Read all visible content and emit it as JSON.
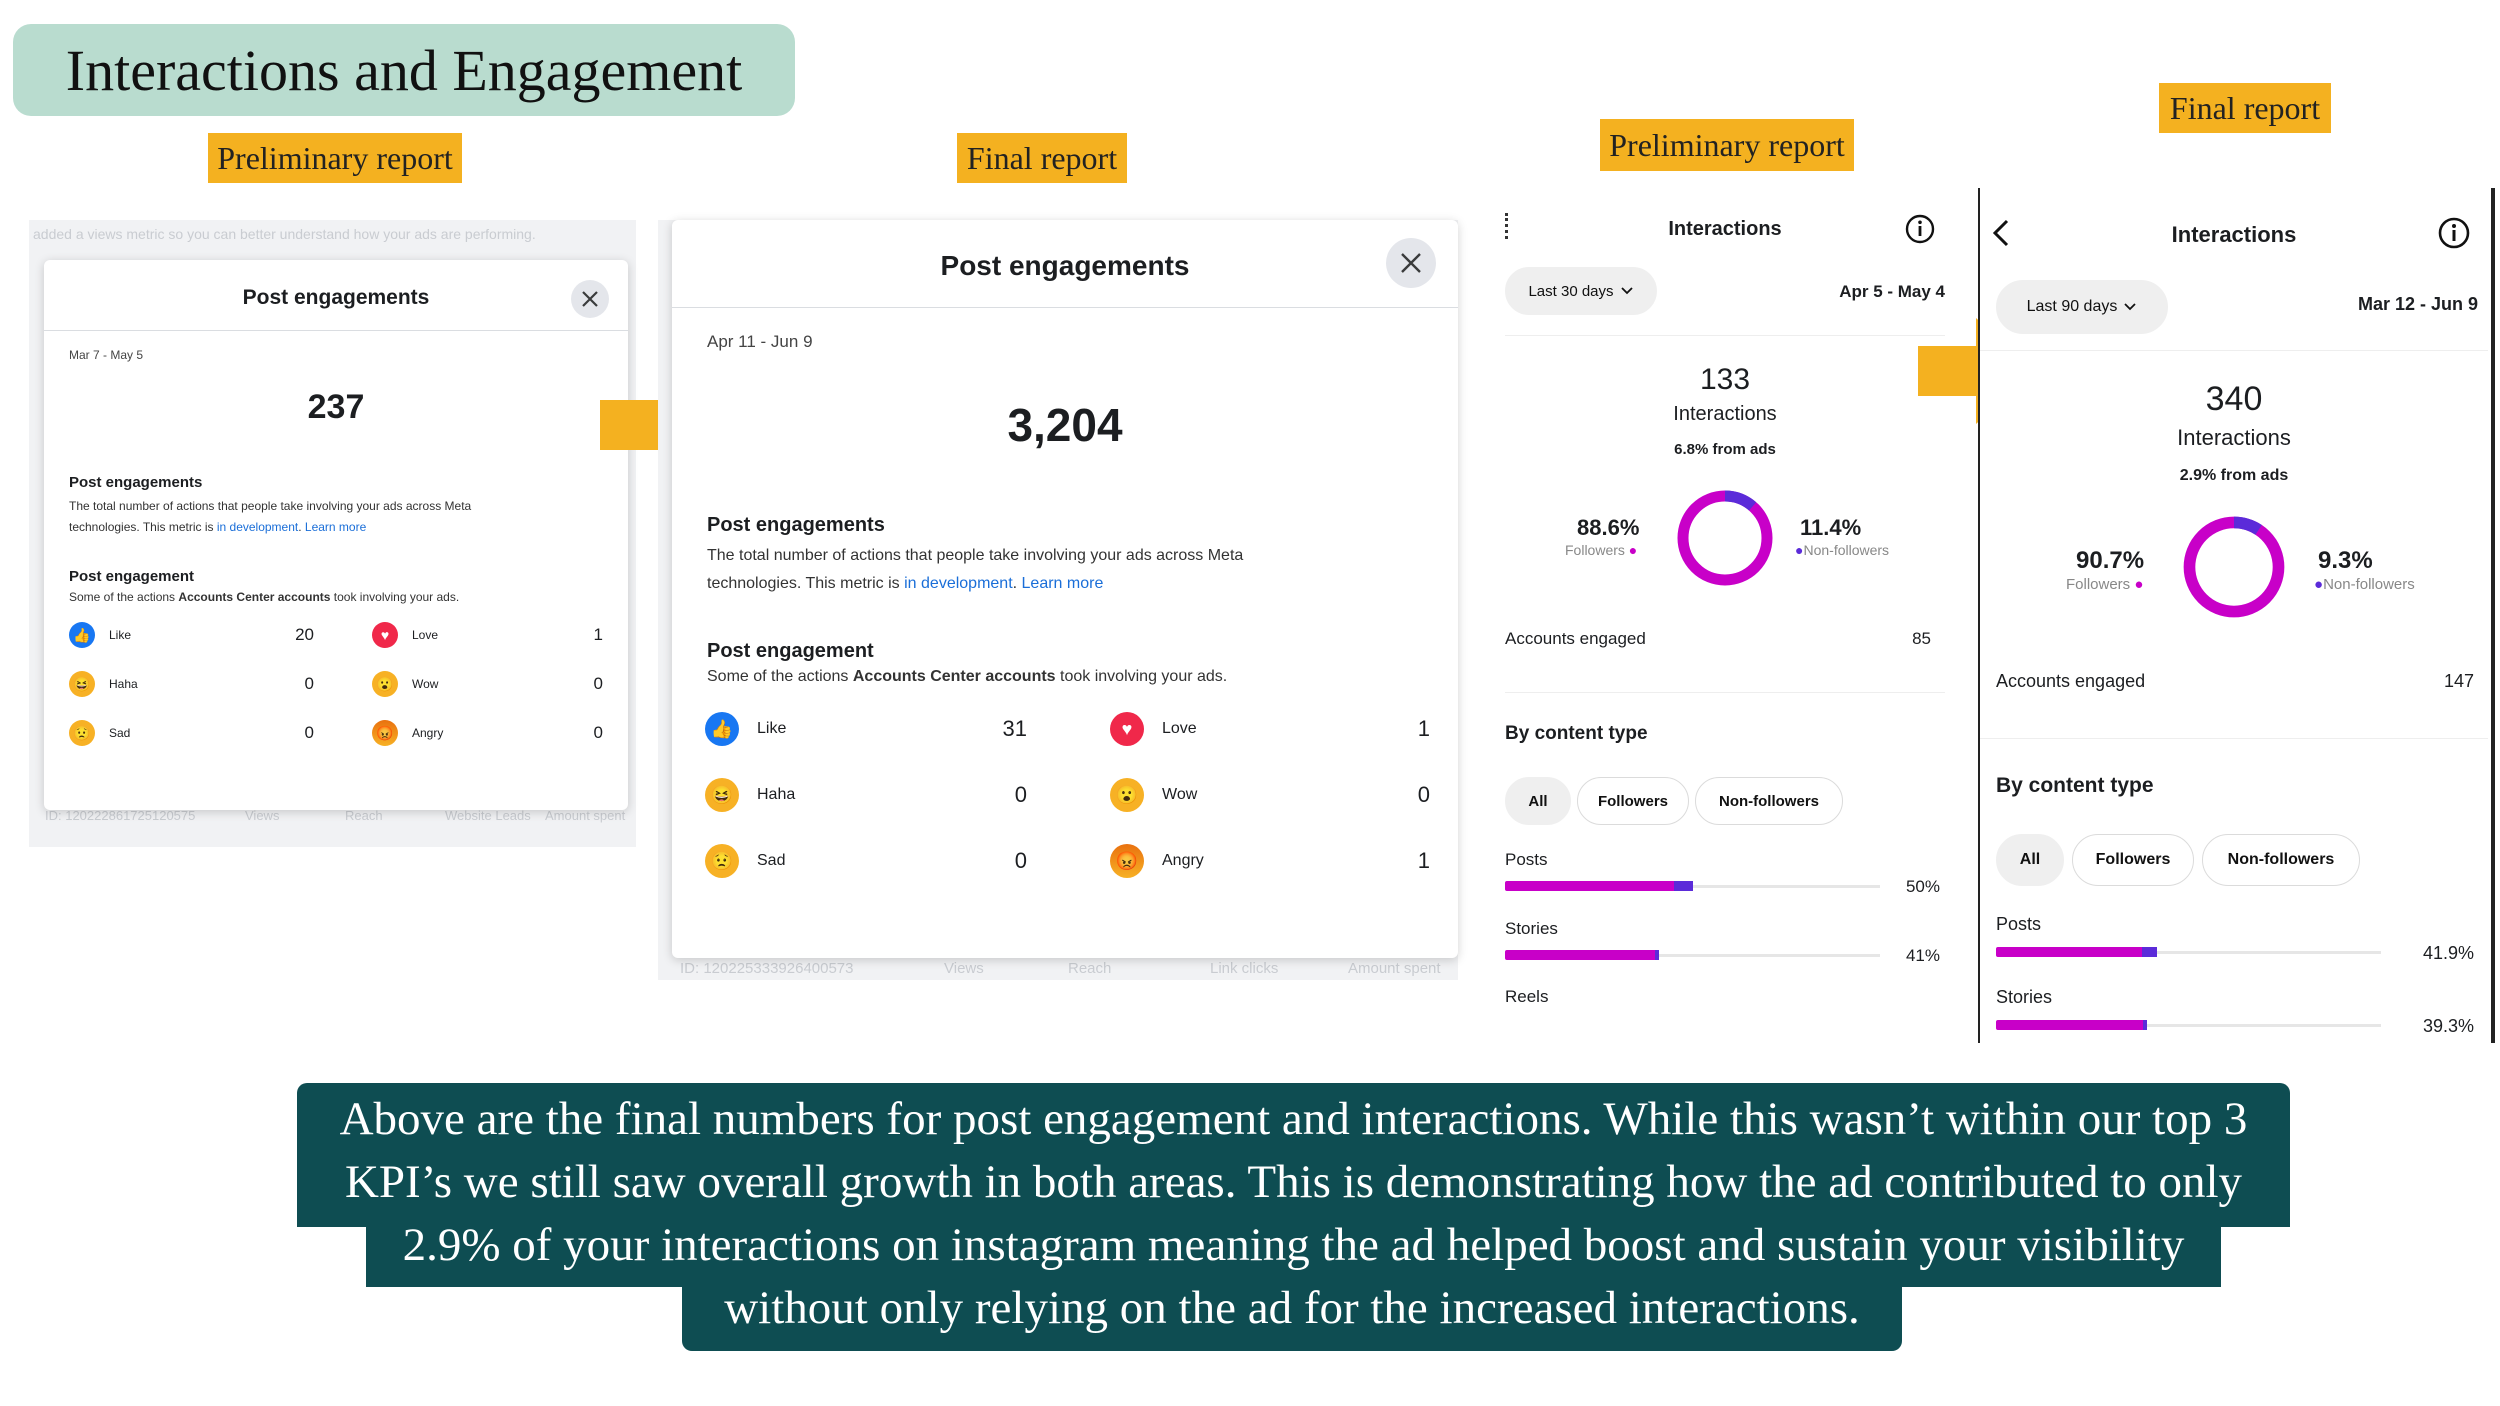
{
  "title": "Interactions and Engagement",
  "tags": {
    "prelim_left": "Preliminary report",
    "final_left": "Final report",
    "prelim_right": "Preliminary report",
    "final_right": "Final report"
  },
  "prelim_post": {
    "bg_notice": "added a views metric so you can better understand how your ads are performing.",
    "bg_id": "ID: 120222861725120575",
    "bg_cols": [
      "Views",
      "Reach",
      "Website Leads",
      "Amount spent"
    ],
    "heading": "Post engagements",
    "date_range": "Mar 7 - May 5",
    "total": "237",
    "section1_title": "Post engagements",
    "section1_text": "The total number of actions that people take involving your ads across Meta",
    "section1_text2": "technologies. This metric is ",
    "dev_link": "in development",
    "learn_more": "Learn more",
    "section2_title": "Post engagement",
    "section2_text_a": "Some of the actions ",
    "section2_bold": "Accounts Center accounts",
    "section2_text_b": " took involving your ads.",
    "reactions": [
      {
        "name": "Like",
        "value": "20"
      },
      {
        "name": "Love",
        "value": "1"
      },
      {
        "name": "Haha",
        "value": "0"
      },
      {
        "name": "Wow",
        "value": "0"
      },
      {
        "name": "Sad",
        "value": "0"
      },
      {
        "name": "Angry",
        "value": "0"
      }
    ]
  },
  "final_post": {
    "bg_id": "ID: 120225333926400573",
    "bg_cols": [
      "Views",
      "Reach",
      "Link clicks",
      "Amount spent"
    ],
    "heading": "Post engagements",
    "date_range": "Apr 11 - Jun 9",
    "total": "3,204",
    "section1_title": "Post engagements",
    "section1_text": "The total number of actions that people take involving your ads across Meta",
    "section1_text2": "technologies. This metric is ",
    "dev_link": "in development",
    "learn_more": "Learn more",
    "section2_title": "Post engagement",
    "section2_text_a": "Some of the actions ",
    "section2_bold": "Accounts Center accounts",
    "section2_text_b": " took involving your ads.",
    "reactions": [
      {
        "name": "Like",
        "value": "31"
      },
      {
        "name": "Love",
        "value": "1"
      },
      {
        "name": "Haha",
        "value": "0"
      },
      {
        "name": "Wow",
        "value": "0"
      },
      {
        "name": "Sad",
        "value": "0"
      },
      {
        "name": "Angry",
        "value": "1"
      }
    ]
  },
  "prelim_insta": {
    "heading": "Interactions",
    "range_button": "Last 30 days",
    "date_range": "Apr 5 - May 4",
    "total": "133",
    "total_label": "Interactions",
    "ads_share": "6.8% from ads",
    "followers_pct": "88.6%",
    "followers_label": "Followers",
    "non_followers_pct": "11.4%",
    "non_followers_label": "Non-followers",
    "followers_fraction": 0.886,
    "accounts_label": "Accounts engaged",
    "accounts_value": "85",
    "content_heading": "By content type",
    "chips": [
      "All",
      "Followers",
      "Non-followers"
    ],
    "content": [
      {
        "label": "Posts",
        "value": "50%",
        "fraction": 0.5,
        "ad_fraction": 0.05
      },
      {
        "label": "Stories",
        "value": "41%",
        "fraction": 0.41,
        "ad_fraction": 0.01
      },
      {
        "label": "Reels",
        "value": "",
        "fraction": 0,
        "ad_fraction": 0
      }
    ]
  },
  "final_insta": {
    "heading": "Interactions",
    "range_button": "Last 90 days",
    "date_range": "Mar 12 - Jun 9",
    "total": "340",
    "total_label": "Interactions",
    "ads_share": "2.9% from ads",
    "followers_pct": "90.7%",
    "followers_label": "Followers",
    "non_followers_pct": "9.3%",
    "non_followers_label": "Non-followers",
    "followers_fraction": 0.907,
    "accounts_label": "Accounts engaged",
    "accounts_value": "147",
    "content_heading": "By content type",
    "chips": [
      "All",
      "Followers",
      "Non-followers"
    ],
    "content": [
      {
        "label": "Posts",
        "value": "41.9%",
        "fraction": 0.419,
        "ad_fraction": 0.04
      },
      {
        "label": "Stories",
        "value": "39.3%",
        "fraction": 0.393,
        "ad_fraction": 0.01
      }
    ]
  },
  "caption": {
    "line1": "Above are the final numbers for post engagement and interactions. While this wasn’t within our top 3",
    "line2": "KPI’s we still saw overall growth in both areas. This is demonstrating how the ad contributed to only",
    "line3": "2.9% of your interactions on instagram meaning the ad helped boost and sustain your visibility",
    "line4": "without only relying on the ad for the increased interactions."
  },
  "colors": {
    "title_bg": "#b9dccf",
    "tag_bg": "#f4b120",
    "arrow": "#f4b120",
    "caption_bg": "#0e4d52",
    "ring_followers": "#c800c8",
    "ring_non_followers": "#5b2bd9",
    "link": "#1a6ed8"
  },
  "icons": {
    "close": "close-icon",
    "info": "info-icon",
    "back": "chevron-left-icon",
    "dropdown": "chevron-down-icon",
    "arrow": "right-arrow-icon"
  }
}
